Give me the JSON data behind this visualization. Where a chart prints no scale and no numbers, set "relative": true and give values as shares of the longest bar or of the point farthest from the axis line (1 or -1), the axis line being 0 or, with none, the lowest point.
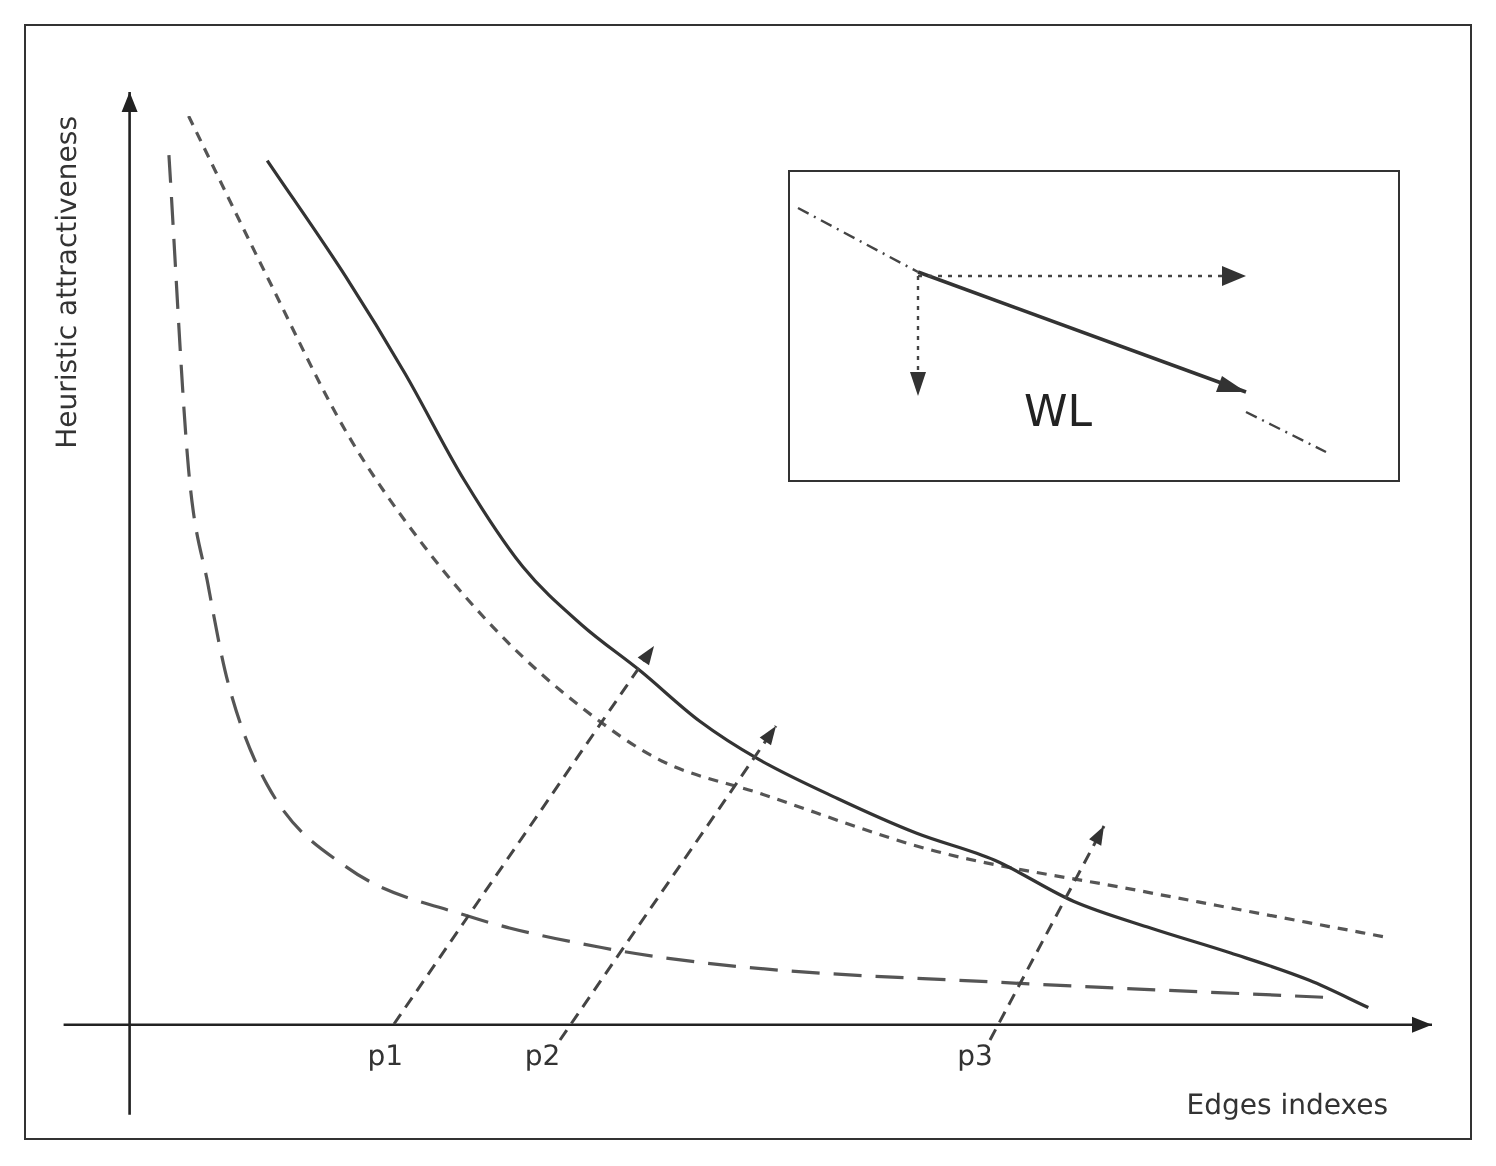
{
  "chart_data": {
    "type": "line",
    "relative": true,
    "xlabel": "Edges indexes",
    "ylabel": "Heuristic attractiveness",
    "categories": [
      null,
      null,
      null,
      null,
      null,
      null,
      null,
      null,
      null,
      null,
      null,
      null,
      null,
      "p1",
      null,
      null,
      null,
      null,
      null,
      null,
      null,
      "p2",
      null,
      null,
      null,
      null,
      null,
      null,
      null,
      null,
      null,
      null,
      null,
      null,
      null,
      null,
      null,
      null,
      null,
      null,
      null,
      null,
      null,
      "p3",
      null,
      null,
      null,
      null,
      null,
      null,
      null,
      null,
      null,
      null,
      null,
      null,
      null,
      null,
      null,
      null,
      null,
      null,
      null,
      null,
      null
    ],
    "series": [
      {
        "color": "#333333",
        "line_style": "solid",
        "values": [
          null,
          null,
          null,
          null,
          null,
          null,
          null,
          0.951,
          null,
          null,
          null,
          0.823,
          null,
          null,
          0.717,
          null,
          null,
          0.6,
          null,
          null,
          0.504,
          null,
          null,
          0.44,
          null,
          null,
          0.389,
          null,
          null,
          0.334,
          null,
          null,
          0.292,
          null,
          null,
          null,
          0.249,
          null,
          null,
          null,
          0.211,
          null,
          null,
          null,
          0.181,
          null,
          null,
          null,
          0.136,
          null,
          null,
          null,
          0.106,
          null,
          null,
          null,
          0.079,
          null,
          null,
          null,
          0.049,
          null,
          null,
          0.019,
          null
        ]
      },
      {
        "color": "#555555",
        "line_style": "dotted",
        "values": [
          null,
          null,
          null,
          1.0,
          null,
          null,
          null,
          0.823,
          null,
          null,
          null,
          0.653,
          null,
          null,
          null,
          0.526,
          null,
          null,
          null,
          0.426,
          null,
          null,
          null,
          0.349,
          null,
          null,
          null,
          0.291,
          null,
          null,
          null,
          null,
          0.255,
          null,
          null,
          null,
          null,
          null,
          null,
          null,
          null,
          0.191,
          null,
          null,
          null,
          null,
          null,
          null,
          null,
          null,
          null,
          0.149,
          null,
          null,
          null,
          null,
          null,
          null,
          null,
          null,
          null,
          null,
          null,
          null,
          0.096
        ]
      },
      {
        "color": "#555555",
        "line_style": "dashed",
        "values": [
          null,
          null,
          0.957,
          0.611,
          0.483,
          0.377,
          null,
          0.264,
          null,
          null,
          null,
          0.174,
          null,
          null,
          null,
          null,
          null,
          0.121,
          null,
          null,
          null,
          null,
          null,
          null,
          0.085,
          null,
          null,
          null,
          null,
          null,
          null,
          0.064,
          null,
          null,
          null,
          null,
          null,
          null,
          null,
          null,
          null,
          null,
          null,
          null,
          0.047,
          null,
          null,
          null,
          null,
          null,
          null,
          null,
          null,
          null,
          null,
          null,
          null,
          null,
          null,
          null,
          null,
          0.03,
          null,
          null,
          null
        ]
      }
    ],
    "annotations": [
      "WL"
    ]
  }
}
